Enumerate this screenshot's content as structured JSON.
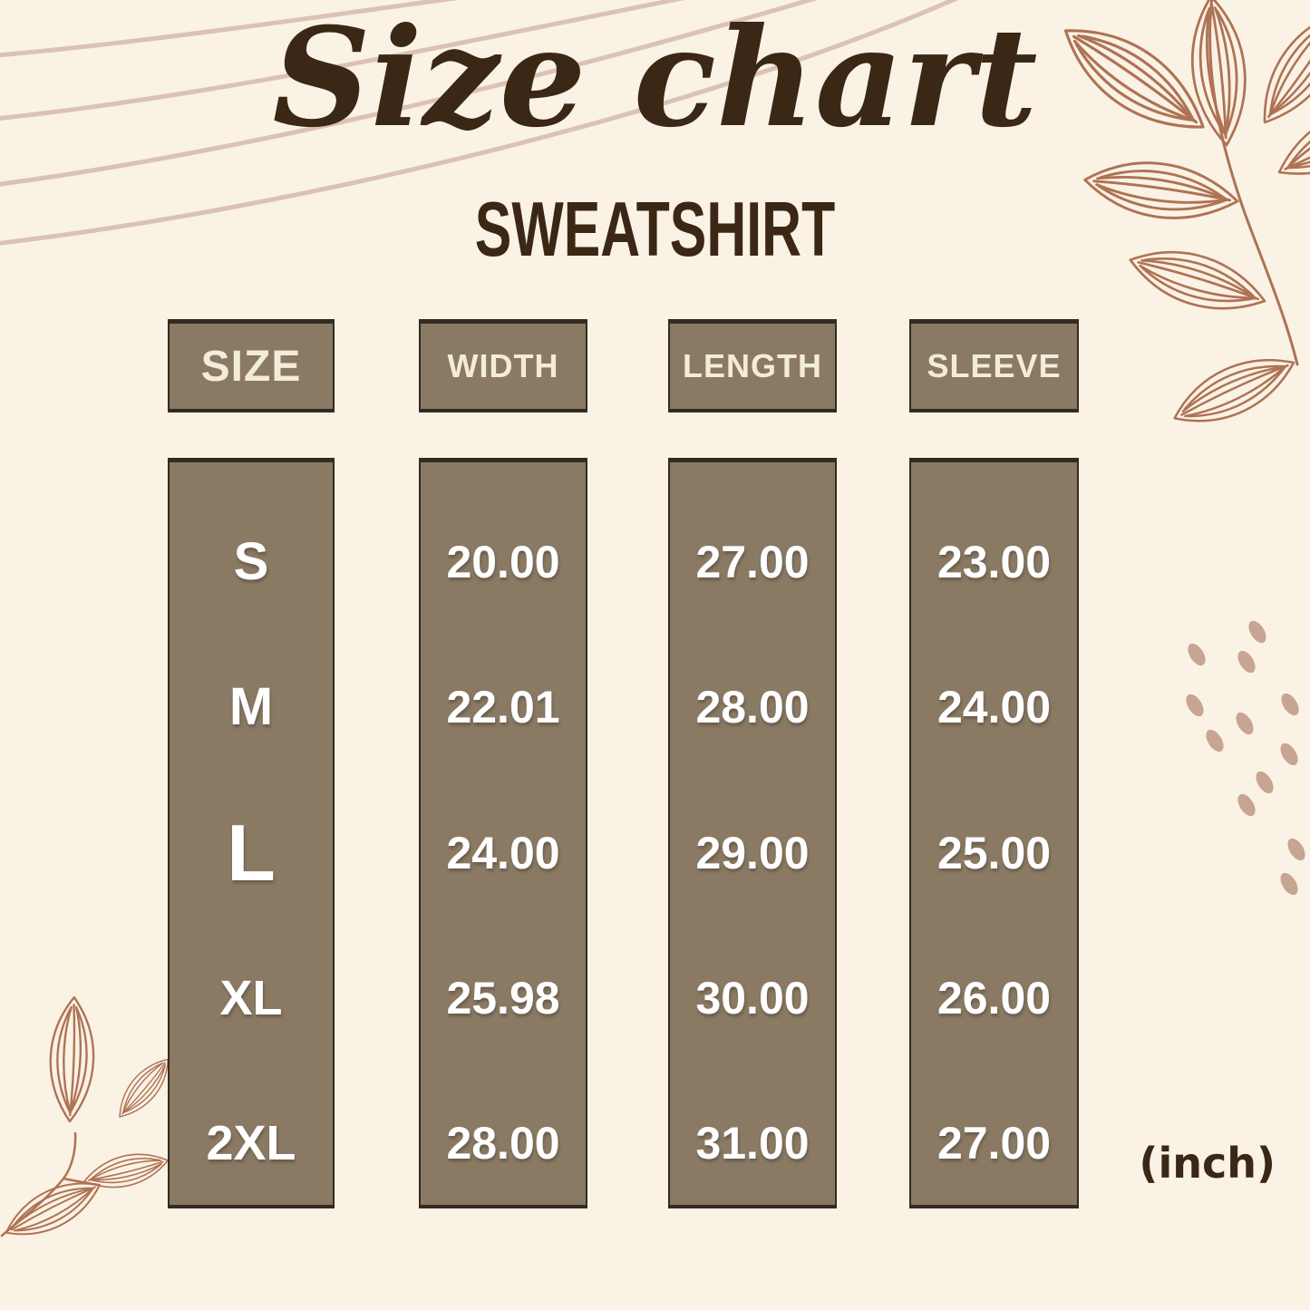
{
  "title": {
    "script": "Size chart",
    "product": "SWEATSHIRT"
  },
  "unit_note": "(inch)",
  "chart_data": {
    "type": "table",
    "title": "Size chart",
    "subtitle": "SWEATSHIRT",
    "unit": "inch",
    "columns": [
      "SIZE",
      "WIDTH",
      "LENGTH",
      "SLEEVE"
    ],
    "rows": [
      {
        "size": "S",
        "width": "20.00",
        "length": "27.00",
        "sleeve": "23.00"
      },
      {
        "size": "M",
        "width": "22.01",
        "length": "28.00",
        "sleeve": "24.00"
      },
      {
        "size": "L",
        "width": "24.00",
        "length": "29.00",
        "sleeve": "25.00"
      },
      {
        "size": "XL",
        "width": "25.98",
        "length": "30.00",
        "sleeve": "26.00"
      },
      {
        "size": "2XL",
        "width": "28.00",
        "length": "31.00",
        "sleeve": "27.00"
      }
    ]
  },
  "colors": {
    "background": "#faf2e4",
    "box_fill": "#8a7a64",
    "box_border": "#332b22",
    "header_text": "#f3ecd8",
    "value_text": "#ffffff",
    "title_text": "#3a2715",
    "leaf_stroke": "#ae7254",
    "swoosh_stroke": "#dcc2b4",
    "dot_fill": "#c8a493"
  },
  "decor": {
    "icons": [
      "swoosh-lines-icon",
      "leaf-branch-top-right-icon",
      "leaf-branch-bottom-left-icon",
      "seed-dots-icon"
    ]
  }
}
